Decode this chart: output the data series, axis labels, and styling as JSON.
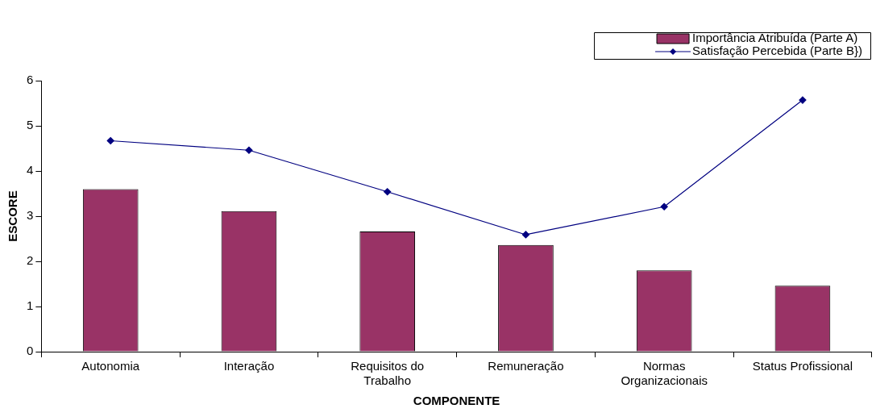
{
  "chart_data": {
    "type": "bar",
    "xlabel": "COMPONENTE",
    "ylabel": "ESCORE",
    "categories": [
      "Autonomia",
      "Interação",
      "Requisitos do Trabalho",
      "Remuneração",
      "Normas Organizacionais",
      "Status Profissional"
    ],
    "series": [
      {
        "name": "Importância Atribuída (Parte A)",
        "color": "#993366",
        "values": [
          3.6,
          3.11,
          2.66,
          2.36,
          1.8,
          1.46
        ]
      },
      {
        "name": "Satisfação Percebida (Parte B})",
        "type": "line",
        "color": "#000080",
        "marker": "diamond",
        "values": [
          4.67,
          4.46,
          3.54,
          2.59,
          3.21,
          5.57
        ]
      }
    ],
    "ylim": [
      0,
      6
    ],
    "yticks": [
      0,
      1,
      2,
      3,
      4,
      5,
      6
    ],
    "grid": false,
    "legend": "top right"
  }
}
